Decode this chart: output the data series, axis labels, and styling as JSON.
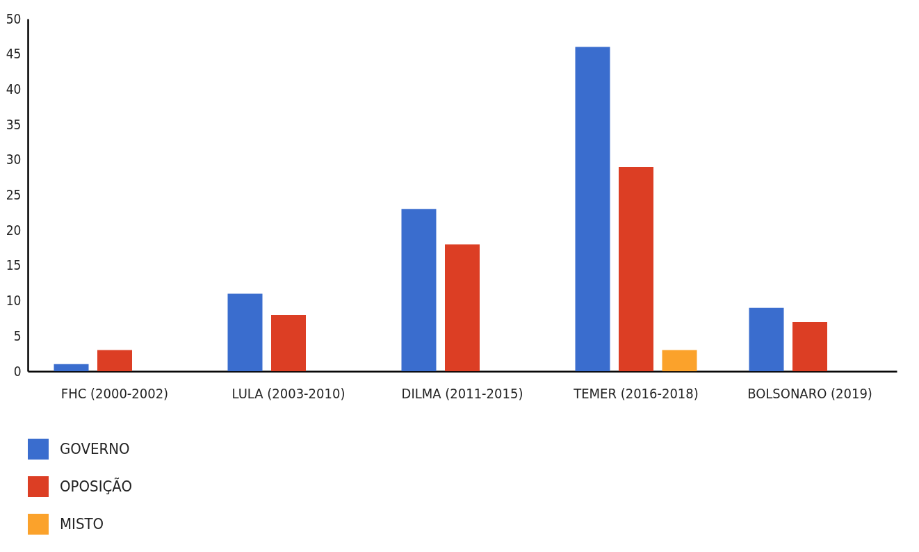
{
  "chart_data": {
    "type": "bar",
    "categories": [
      "FHC (2000-2002)",
      "LULA (2003-2010)",
      "DILMA (2011-2015)",
      "TEMER (2016-2018)",
      "BOLSONARO (2019)"
    ],
    "series": [
      {
        "name": "GOVERNO",
        "color": "#3a6dce",
        "values": [
          1,
          11,
          23,
          46,
          9
        ]
      },
      {
        "name": "OPOSIÇÃO",
        "color": "#dc3e24",
        "values": [
          3,
          8,
          18,
          29,
          7
        ]
      },
      {
        "name": "MISTO",
        "color": "#fba22b",
        "values": [
          null,
          null,
          null,
          3,
          null
        ]
      }
    ],
    "ylim": [
      0,
      50
    ],
    "yticks": [
      0,
      5,
      10,
      15,
      20,
      25,
      30,
      35,
      40,
      45,
      50
    ],
    "grid": false,
    "legend": "bottom left"
  }
}
